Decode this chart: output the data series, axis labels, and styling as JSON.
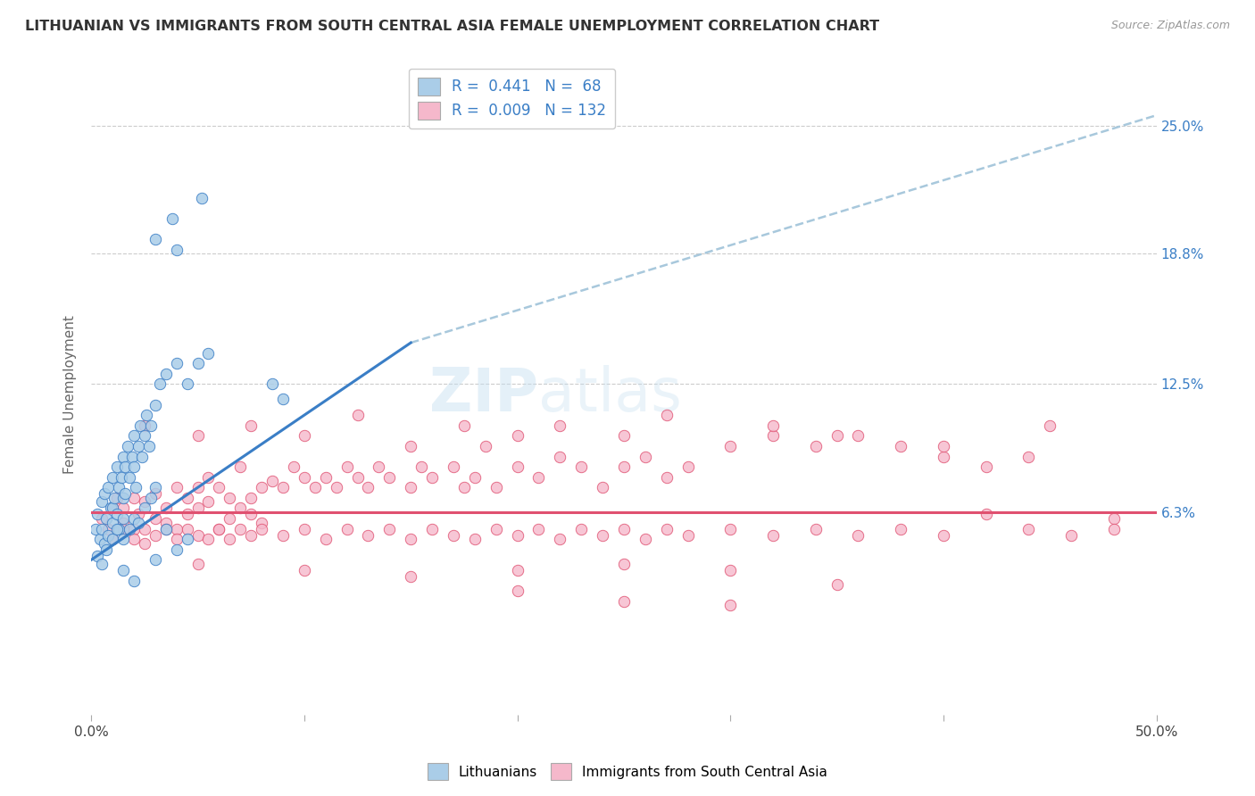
{
  "title": "LITHUANIAN VS IMMIGRANTS FROM SOUTH CENTRAL ASIA FEMALE UNEMPLOYMENT CORRELATION CHART",
  "source": "Source: ZipAtlas.com",
  "ylabel": "Female Unemployment",
  "ytick_labels": [
    "6.3%",
    "12.5%",
    "18.8%",
    "25.0%"
  ],
  "ytick_values": [
    6.3,
    12.5,
    18.8,
    25.0
  ],
  "xlim": [
    0.0,
    50.0
  ],
  "ylim": [
    -3.5,
    27.5
  ],
  "color_blue": "#aacde8",
  "color_pink": "#f5b8cb",
  "color_blue_line": "#3a7ec6",
  "color_pink_line": "#e05070",
  "color_dashed_line": "#a8c8dc",
  "watermark_zip": "ZIP",
  "watermark_atlas": "atlas",
  "series1_label": "Lithuanians",
  "series2_label": "Immigrants from South Central Asia",
  "blue_scatter": [
    [
      0.2,
      5.5
    ],
    [
      0.3,
      6.2
    ],
    [
      0.4,
      5.0
    ],
    [
      0.5,
      6.8
    ],
    [
      0.5,
      5.5
    ],
    [
      0.6,
      7.2
    ],
    [
      0.6,
      4.8
    ],
    [
      0.7,
      6.0
    ],
    [
      0.8,
      7.5
    ],
    [
      0.8,
      5.2
    ],
    [
      0.9,
      6.5
    ],
    [
      1.0,
      8.0
    ],
    [
      1.0,
      5.8
    ],
    [
      1.0,
      6.5
    ],
    [
      1.1,
      7.0
    ],
    [
      1.2,
      8.5
    ],
    [
      1.2,
      6.2
    ],
    [
      1.3,
      7.5
    ],
    [
      1.3,
      5.5
    ],
    [
      1.4,
      8.0
    ],
    [
      1.5,
      9.0
    ],
    [
      1.5,
      7.0
    ],
    [
      1.5,
      6.0
    ],
    [
      1.6,
      8.5
    ],
    [
      1.6,
      7.2
    ],
    [
      1.7,
      9.5
    ],
    [
      1.8,
      8.0
    ],
    [
      1.9,
      9.0
    ],
    [
      2.0,
      10.0
    ],
    [
      2.0,
      8.5
    ],
    [
      2.1,
      7.5
    ],
    [
      2.2,
      9.5
    ],
    [
      2.3,
      10.5
    ],
    [
      2.4,
      9.0
    ],
    [
      2.5,
      10.0
    ],
    [
      2.6,
      11.0
    ],
    [
      2.7,
      9.5
    ],
    [
      2.8,
      10.5
    ],
    [
      3.0,
      11.5
    ],
    [
      3.2,
      12.5
    ],
    [
      3.5,
      13.0
    ],
    [
      4.0,
      13.5
    ],
    [
      4.5,
      12.5
    ],
    [
      5.0,
      13.5
    ],
    [
      5.5,
      14.0
    ],
    [
      0.3,
      4.2
    ],
    [
      0.5,
      3.8
    ],
    [
      0.7,
      4.5
    ],
    [
      1.0,
      5.0
    ],
    [
      1.2,
      5.5
    ],
    [
      1.5,
      5.0
    ],
    [
      1.8,
      5.5
    ],
    [
      2.0,
      6.0
    ],
    [
      2.2,
      5.8
    ],
    [
      2.5,
      6.5
    ],
    [
      2.8,
      7.0
    ],
    [
      3.0,
      7.5
    ],
    [
      3.5,
      5.5
    ],
    [
      4.0,
      4.5
    ],
    [
      4.5,
      5.0
    ],
    [
      1.5,
      3.5
    ],
    [
      2.0,
      3.0
    ],
    [
      3.0,
      4.0
    ],
    [
      3.8,
      20.5
    ],
    [
      5.2,
      21.5
    ],
    [
      3.0,
      19.5
    ],
    [
      4.0,
      19.0
    ],
    [
      8.5,
      12.5
    ],
    [
      9.0,
      11.8
    ]
  ],
  "pink_scatter": [
    [
      0.5,
      6.0
    ],
    [
      0.8,
      5.5
    ],
    [
      1.0,
      6.5
    ],
    [
      1.2,
      7.0
    ],
    [
      1.5,
      5.8
    ],
    [
      1.5,
      6.5
    ],
    [
      2.0,
      7.0
    ],
    [
      2.0,
      5.5
    ],
    [
      2.2,
      6.2
    ],
    [
      2.5,
      6.8
    ],
    [
      2.5,
      5.5
    ],
    [
      3.0,
      7.2
    ],
    [
      3.0,
      6.0
    ],
    [
      3.5,
      6.5
    ],
    [
      3.5,
      5.8
    ],
    [
      4.0,
      7.5
    ],
    [
      4.0,
      5.5
    ],
    [
      4.5,
      7.0
    ],
    [
      4.5,
      6.2
    ],
    [
      5.0,
      7.5
    ],
    [
      5.0,
      6.5
    ],
    [
      5.5,
      8.0
    ],
    [
      5.5,
      6.8
    ],
    [
      6.0,
      7.5
    ],
    [
      6.0,
      5.5
    ],
    [
      6.5,
      7.0
    ],
    [
      6.5,
      6.0
    ],
    [
      7.0,
      8.5
    ],
    [
      7.0,
      6.5
    ],
    [
      7.5,
      7.0
    ],
    [
      7.5,
      6.2
    ],
    [
      8.0,
      7.5
    ],
    [
      8.0,
      5.8
    ],
    [
      8.5,
      7.8
    ],
    [
      9.0,
      7.5
    ],
    [
      9.5,
      8.5
    ],
    [
      10.0,
      8.0
    ],
    [
      10.5,
      7.5
    ],
    [
      11.0,
      8.0
    ],
    [
      11.5,
      7.5
    ],
    [
      12.0,
      8.5
    ],
    [
      12.5,
      8.0
    ],
    [
      13.0,
      7.5
    ],
    [
      13.5,
      8.5
    ],
    [
      14.0,
      8.0
    ],
    [
      15.0,
      7.5
    ],
    [
      15.5,
      8.5
    ],
    [
      16.0,
      8.0
    ],
    [
      17.0,
      8.5
    ],
    [
      17.5,
      7.5
    ],
    [
      18.0,
      8.0
    ],
    [
      18.5,
      9.5
    ],
    [
      19.0,
      7.5
    ],
    [
      20.0,
      8.5
    ],
    [
      21.0,
      8.0
    ],
    [
      22.0,
      9.0
    ],
    [
      23.0,
      8.5
    ],
    [
      24.0,
      7.5
    ],
    [
      25.0,
      8.5
    ],
    [
      26.0,
      9.0
    ],
    [
      27.0,
      8.0
    ],
    [
      28.0,
      8.5
    ],
    [
      30.0,
      9.5
    ],
    [
      32.0,
      10.0
    ],
    [
      34.0,
      9.5
    ],
    [
      36.0,
      10.0
    ],
    [
      38.0,
      9.5
    ],
    [
      40.0,
      9.0
    ],
    [
      42.0,
      8.5
    ],
    [
      44.0,
      9.0
    ],
    [
      1.0,
      5.0
    ],
    [
      1.5,
      5.5
    ],
    [
      2.0,
      5.0
    ],
    [
      2.5,
      4.8
    ],
    [
      3.0,
      5.2
    ],
    [
      3.5,
      5.5
    ],
    [
      4.0,
      5.0
    ],
    [
      4.5,
      5.5
    ],
    [
      5.0,
      5.2
    ],
    [
      5.5,
      5.0
    ],
    [
      6.0,
      5.5
    ],
    [
      6.5,
      5.0
    ],
    [
      7.0,
      5.5
    ],
    [
      7.5,
      5.2
    ],
    [
      8.0,
      5.5
    ],
    [
      9.0,
      5.2
    ],
    [
      10.0,
      5.5
    ],
    [
      11.0,
      5.0
    ],
    [
      12.0,
      5.5
    ],
    [
      13.0,
      5.2
    ],
    [
      14.0,
      5.5
    ],
    [
      15.0,
      5.0
    ],
    [
      16.0,
      5.5
    ],
    [
      17.0,
      5.2
    ],
    [
      18.0,
      5.0
    ],
    [
      19.0,
      5.5
    ],
    [
      20.0,
      5.2
    ],
    [
      21.0,
      5.5
    ],
    [
      22.0,
      5.0
    ],
    [
      23.0,
      5.5
    ],
    [
      24.0,
      5.2
    ],
    [
      25.0,
      5.5
    ],
    [
      26.0,
      5.0
    ],
    [
      27.0,
      5.5
    ],
    [
      28.0,
      5.2
    ],
    [
      30.0,
      5.5
    ],
    [
      32.0,
      5.2
    ],
    [
      34.0,
      5.5
    ],
    [
      36.0,
      5.2
    ],
    [
      38.0,
      5.5
    ],
    [
      40.0,
      5.2
    ],
    [
      42.0,
      6.2
    ],
    [
      44.0,
      5.5
    ],
    [
      46.0,
      5.2
    ],
    [
      48.0,
      6.0
    ],
    [
      5.0,
      3.8
    ],
    [
      10.0,
      3.5
    ],
    [
      15.0,
      3.2
    ],
    [
      20.0,
      3.5
    ],
    [
      25.0,
      3.8
    ],
    [
      30.0,
      3.5
    ],
    [
      35.0,
      2.8
    ],
    [
      20.0,
      2.5
    ],
    [
      25.0,
      2.0
    ],
    [
      30.0,
      1.8
    ],
    [
      2.5,
      10.5
    ],
    [
      5.0,
      10.0
    ],
    [
      7.5,
      10.5
    ],
    [
      10.0,
      10.0
    ],
    [
      12.5,
      11.0
    ],
    [
      15.0,
      9.5
    ],
    [
      17.5,
      10.5
    ],
    [
      20.0,
      10.0
    ],
    [
      22.0,
      10.5
    ],
    [
      25.0,
      10.0
    ],
    [
      27.0,
      11.0
    ],
    [
      32.0,
      10.5
    ],
    [
      35.0,
      10.0
    ],
    [
      40.0,
      9.5
    ],
    [
      45.0,
      10.5
    ],
    [
      48.0,
      5.5
    ]
  ],
  "blue_line": {
    "x0": 0.0,
    "y0": 4.0,
    "x1": 15.0,
    "y1": 14.5
  },
  "dashed_line": {
    "x0": 15.0,
    "y0": 14.5,
    "x1": 50.0,
    "y1": 25.5
  },
  "pink_line": {
    "x0": 0.0,
    "y1": 6.3,
    "x1": 50.0,
    "y0": 6.3
  },
  "grid_yticks": [
    6.3,
    12.5,
    18.8,
    25.0
  ],
  "xtick_positions": [
    0,
    10,
    20,
    30,
    40,
    50
  ],
  "xtick_labels_show": {
    "0": "0.0%",
    "50": "50.0%"
  }
}
